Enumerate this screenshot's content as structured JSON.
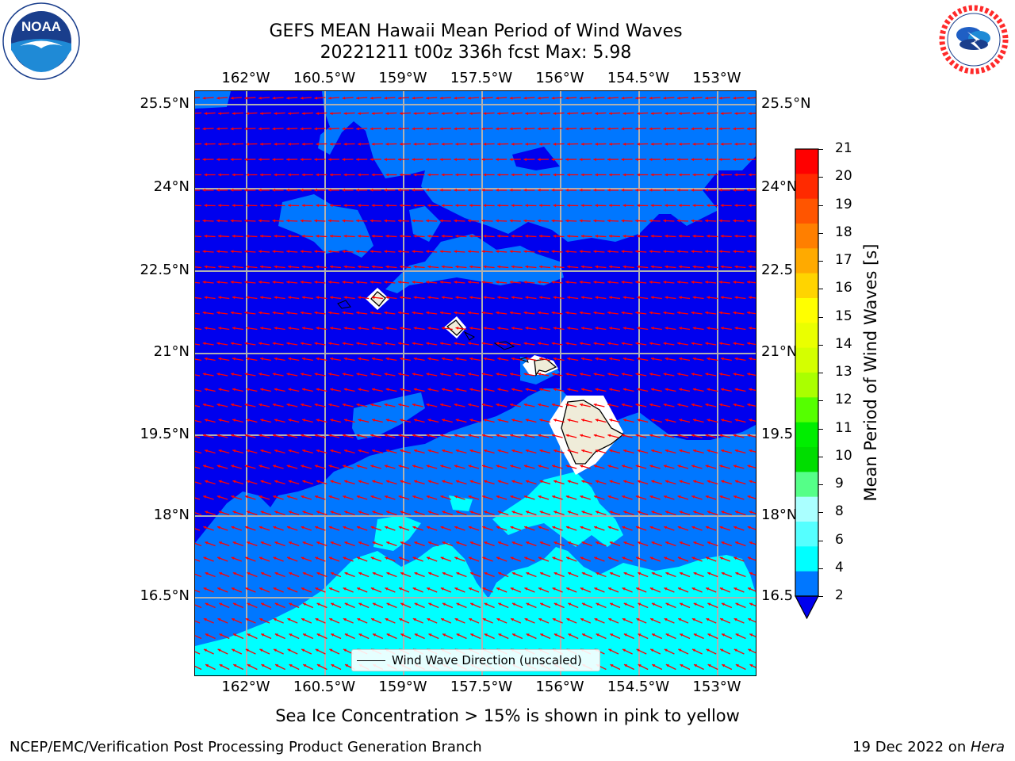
{
  "header": {
    "title_line1": "GEFS MEAN Hawaii Mean Period of Wind Waves",
    "title_line2": "20221211 t00z 336h fcst   Max: 5.98"
  },
  "logos": {
    "left_icon": "noaa-logo",
    "left_text": "NOAA",
    "right_icon": "nws-logo",
    "right_text": "NATIONAL WEATHER SERVICE"
  },
  "map": {
    "lon_ticks": [
      "162°W",
      "160.5°W",
      "159°W",
      "157.5°W",
      "156°W",
      "154.5°W",
      "153°W"
    ],
    "lat_ticks": [
      "25.5°N",
      "24°N",
      "22.5°N",
      "21°N",
      "19.5°N",
      "18°N",
      "16.5°N"
    ],
    "lat_ticks_right": [
      "25.5°N",
      "24°N",
      "22.5",
      "21°N",
      "19.5",
      "18°N",
      "16.5"
    ],
    "legend_label": "Wind Wave Direction (unscaled)",
    "colors": {
      "band_0_2": "#0000ee",
      "band_2_4": "#0077ff",
      "band_4_6": "#00ffff",
      "land": "#efecd9",
      "arrow": "#ff0000",
      "grid": "#b0b0b0"
    }
  },
  "colorbar": {
    "label": "Mean Period of Wind Waves [s]",
    "ticks": [
      "21",
      "20",
      "19",
      "18",
      "17",
      "16",
      "15",
      "14",
      "13",
      "12",
      "11",
      "10",
      "9",
      "8",
      "6",
      "4",
      "2"
    ],
    "colors": [
      "#ff0000",
      "#ff2a00",
      "#ff5500",
      "#ff7f00",
      "#ffaa00",
      "#ffd400",
      "#ffff00",
      "#eaff00",
      "#d4ff00",
      "#aaff00",
      "#55ff00",
      "#00ee00",
      "#00dd00",
      "#55ff88",
      "#aaffff",
      "#55ffff",
      "#00ffff",
      "#0077ff"
    ],
    "under_color": "#0000ee"
  },
  "footer": {
    "note": "Sea Ice Concentration > 15% is shown in pink to yellow",
    "credit_left": "NCEP/EMC/Verification Post Processing Product Generation Branch",
    "credit_right_prefix": "19 Dec 2022 on ",
    "credit_right_machine": "Hera"
  }
}
